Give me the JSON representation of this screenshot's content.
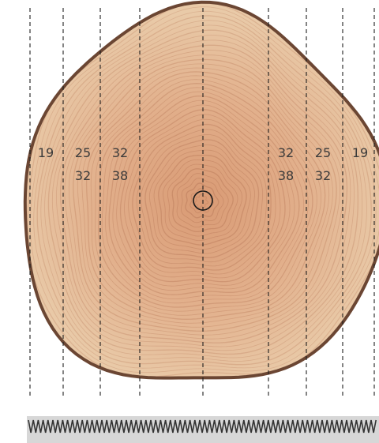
{
  "cut_labels": {
    "left_outer": "19",
    "left_mid_top": "25",
    "left_mid_bottom": "32",
    "left_inner_top": "32",
    "left_inner_bottom": "38",
    "right_inner_top": "32",
    "right_inner_bottom": "38",
    "right_mid_top": "25",
    "right_mid_bottom": "32",
    "right_outer": "19"
  },
  "colors": {
    "wood_outer": "#e7c6a3",
    "wood_inner": "#d99a74",
    "bark": "#6b4633",
    "rings": "#b97a5a",
    "cut_line": "#1e1e1e",
    "saw_strip": "#d7d7d7",
    "saw_teeth": "#333333"
  }
}
